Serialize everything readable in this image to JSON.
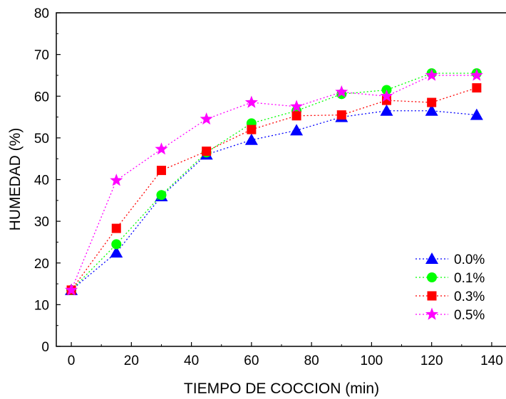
{
  "chart_data": {
    "type": "line",
    "title": "",
    "xlabel": "TIEMPO DE COCCION (min)",
    "ylabel": "HUMEDAD (%)",
    "xlim": [
      -5,
      145
    ],
    "ylim": [
      0,
      80
    ],
    "x_ticks": [
      0,
      20,
      40,
      60,
      80,
      100,
      120,
      140
    ],
    "y_ticks": [
      0,
      10,
      20,
      30,
      40,
      50,
      60,
      70,
      80
    ],
    "grid": false,
    "legend_position": "bottom-right",
    "x": [
      0,
      15,
      30,
      45,
      60,
      75,
      90,
      105,
      120,
      135
    ],
    "series": [
      {
        "name": "0.0%",
        "color": "#0000ff",
        "marker": "triangle",
        "values": [
          13.5,
          22.5,
          36.0,
          46.0,
          49.5,
          51.8,
          55.0,
          56.5,
          56.5,
          55.5
        ]
      },
      {
        "name": "0.1%",
        "color": "#00ff00",
        "marker": "circle",
        "values": [
          13.5,
          24.5,
          36.3,
          46.5,
          53.5,
          56.5,
          60.5,
          61.5,
          65.5,
          65.5
        ]
      },
      {
        "name": "0.3%",
        "color": "#ff0000",
        "marker": "square",
        "values": [
          13.5,
          28.3,
          42.2,
          46.8,
          52.0,
          55.3,
          55.5,
          59.0,
          58.5,
          62.0
        ]
      },
      {
        "name": "0.5%",
        "color": "#ff00ff",
        "marker": "star",
        "values": [
          13.5,
          39.8,
          47.3,
          54.5,
          58.5,
          57.5,
          61.0,
          60.0,
          65.0,
          65.0
        ]
      }
    ]
  }
}
